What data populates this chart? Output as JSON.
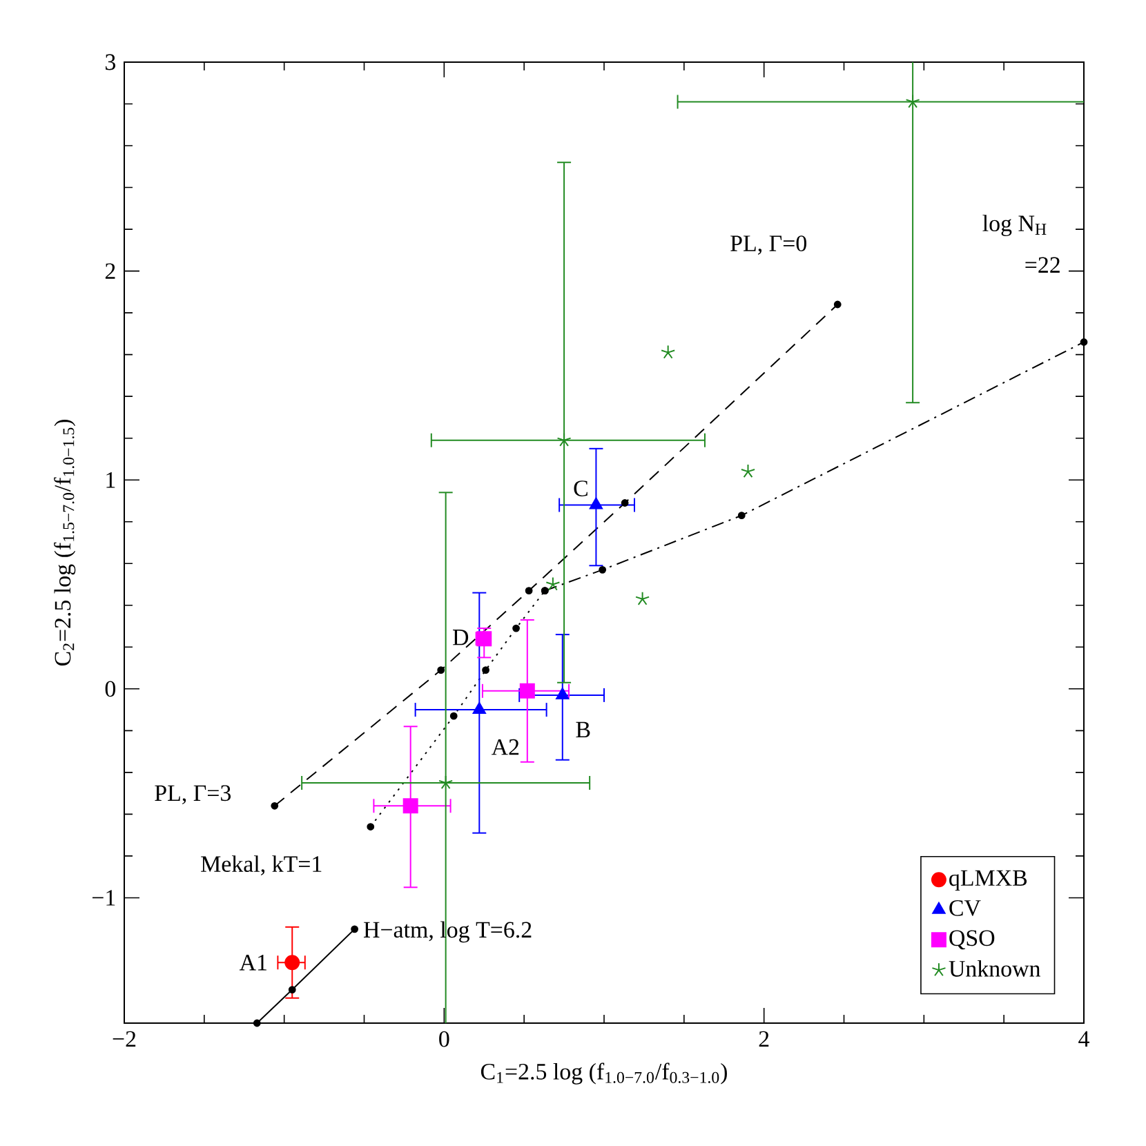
{
  "chart_data": {
    "type": "scatter",
    "xlabel": "C$_{1}$=2.5 log (f$_{1.0−7.0}$/f$_{0.3−1.0}$)",
    "ylabel": "C$_{2}$=2.5 log (f$_{1.5−7.0}$/f$_{1.0−1.5}$)",
    "xlim": [
      -2,
      4
    ],
    "ylim": [
      -1.6,
      3
    ],
    "xticks": [
      {
        "value": -2,
        "label": "−2"
      },
      0,
      2,
      4
    ],
    "yticks": [
      {
        "value": -1,
        "label": "−1"
      },
      0,
      1,
      2,
      3
    ],
    "legend": "bottom right",
    "series": [
      {
        "type": "line",
        "color": "#000000",
        "line_style": "dashed",
        "marker": "circle",
        "x": [
          -1.06,
          -0.02,
          0.53,
          1.13,
          2.46
        ],
        "values": [
          -0.56,
          0.09,
          0.47,
          0.89,
          1.84
        ]
      },
      {
        "type": "line",
        "color": "#000000",
        "line_style": "dotted",
        "marker": "circle",
        "x": [
          -0.46,
          0.06,
          0.26,
          0.45,
          0.63
        ],
        "values": [
          -0.66,
          -0.13,
          0.09,
          0.29,
          0.47
        ]
      },
      {
        "type": "line",
        "color": "#000000",
        "line_style": "dashdot",
        "marker": "circle",
        "x": [
          0.63,
          0.99,
          1.86,
          4.0
        ],
        "values": [
          0.47,
          0.57,
          0.83,
          1.66
        ]
      },
      {
        "type": "line",
        "color": "#000000",
        "line_style": "solid",
        "marker": "circle",
        "x": [
          -1.17,
          -0.95,
          -0.56
        ],
        "values": [
          -1.6,
          -1.44,
          -1.15
        ]
      },
      {
        "name": "qLMXB",
        "color": "#ff0000",
        "marker": "circle",
        "x": [
          -0.95
        ],
        "values": [
          -1.31
        ],
        "errors": [
          [
            -1.48,
            -1.14
          ]
        ],
        "xerrors": [
          [
            -1.04,
            -0.87
          ]
        ]
      },
      {
        "name": "CV",
        "color": "#0000ff",
        "marker": "triangle",
        "x": [
          0.95,
          0.74,
          0.22
        ],
        "values": [
          0.88,
          -0.03,
          -0.1
        ],
        "errors": [
          [
            0.59,
            1.15
          ],
          [
            -0.34,
            0.26
          ],
          [
            -0.69,
            0.46
          ]
        ],
        "xerrors": [
          [
            0.72,
            1.19
          ],
          [
            0.47,
            1.0
          ],
          [
            -0.18,
            0.64
          ]
        ]
      },
      {
        "name": "QSO",
        "color": "#ff00ff",
        "marker": "square",
        "x": [
          0.25,
          0.52,
          -0.21
        ],
        "values": [
          0.24,
          -0.01,
          -0.56
        ],
        "errors": [
          [
            0.15,
            0.29
          ],
          [
            -0.35,
            0.33
          ],
          [
            -0.95,
            -0.18
          ]
        ],
        "xerrors": [
          [
            0.2,
            0.29
          ],
          [
            0.24,
            0.78
          ],
          [
            -0.44,
            0.04
          ]
        ]
      },
      {
        "name": "Unknown",
        "color": "#228b22",
        "marker": "cross",
        "x": [
          0.01,
          0.75,
          2.93,
          1.4,
          1.9,
          1.24,
          0.68
        ],
        "values": [
          -0.45,
          1.19,
          2.81,
          1.61,
          1.04,
          0.43,
          0.5
        ],
        "errors": [
          [
            -1.6,
            0.94
          ],
          [
            0.03,
            2.52
          ],
          [
            1.37,
            3.0
          ],
          null,
          null,
          null,
          null
        ],
        "xerrors": [
          [
            -0.89,
            0.91
          ],
          [
            -0.08,
            1.63
          ],
          [
            1.46,
            4.0
          ],
          null,
          null,
          null,
          null
        ]
      }
    ],
    "annotations": [
      {
        "text": "PL, Γ=0",
        "x": 2.46,
        "y": 1.84
      },
      "log N$_{H}$",
      "=22",
      {
        "text": "PL, Γ=3",
        "x": -1.06,
        "y": -0.56
      },
      {
        "text": "Mekal, kT=1",
        "x": -0.46,
        "y": -0.66
      },
      {
        "text": "H−atm, log T=6.2",
        "x": -0.56,
        "y": -1.15
      },
      {
        "text": "A1",
        "x": -0.95,
        "y": -1.31
      },
      {
        "text": "A2",
        "x": 0.22,
        "y": -0.1
      },
      {
        "text": "B",
        "x": 0.74,
        "y": -0.03
      },
      {
        "text": "C",
        "x": 0.95,
        "y": 0.88
      },
      {
        "text": "D",
        "x": 0.25,
        "y": 0.24
      }
    ]
  }
}
